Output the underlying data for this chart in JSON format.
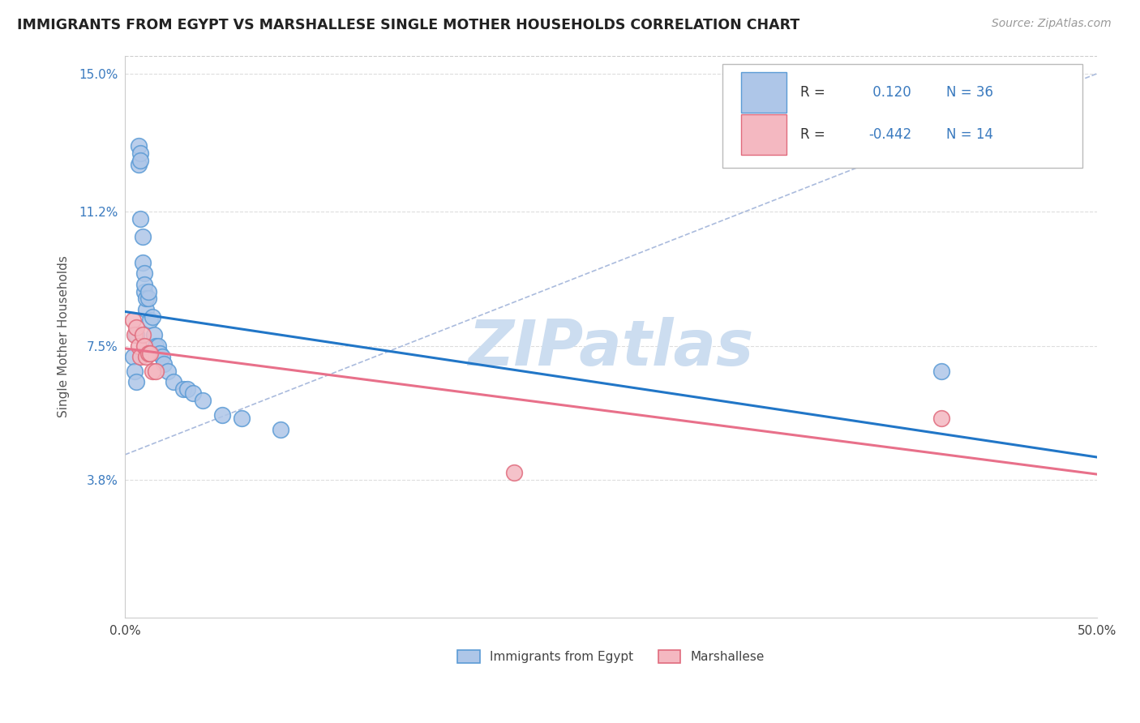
{
  "title": "IMMIGRANTS FROM EGYPT VS MARSHALLESE SINGLE MOTHER HOUSEHOLDS CORRELATION CHART",
  "source": "Source: ZipAtlas.com",
  "ylabel": "Single Mother Households",
  "xlim": [
    0.0,
    0.5
  ],
  "ylim": [
    0.0,
    0.155
  ],
  "xticks": [
    0.0,
    0.1,
    0.2,
    0.3,
    0.4,
    0.5
  ],
  "xticklabels": [
    "0.0%",
    "",
    "",
    "",
    "",
    "50.0%"
  ],
  "ytick_positions": [
    0.038,
    0.075,
    0.112,
    0.15
  ],
  "ytick_labels": [
    "3.8%",
    "7.5%",
    "11.2%",
    "15.0%"
  ],
  "R_egypt": 0.12,
  "N_egypt": 36,
  "R_marshall": -0.442,
  "N_marshall": 14,
  "egypt_color": "#aec6e8",
  "egypt_edge_color": "#5b9bd5",
  "marshall_color": "#f4b8c1",
  "marshall_edge_color": "#e06b7d",
  "egypt_line_color": "#2176c7",
  "marshall_line_color": "#e8708a",
  "watermark_color": "#ccddf0",
  "background_color": "#ffffff",
  "grid_color": "#dddddd",
  "egypt_x": [
    0.004,
    0.005,
    0.006,
    0.006,
    0.007,
    0.007,
    0.008,
    0.008,
    0.008,
    0.009,
    0.009,
    0.01,
    0.01,
    0.01,
    0.011,
    0.011,
    0.012,
    0.012,
    0.013,
    0.014,
    0.015,
    0.016,
    0.017,
    0.018,
    0.019,
    0.02,
    0.022,
    0.025,
    0.03,
    0.032,
    0.035,
    0.04,
    0.05,
    0.06,
    0.08,
    0.42
  ],
  "egypt_y": [
    0.072,
    0.068,
    0.065,
    0.078,
    0.13,
    0.125,
    0.128,
    0.126,
    0.11,
    0.098,
    0.105,
    0.09,
    0.095,
    0.092,
    0.085,
    0.088,
    0.088,
    0.09,
    0.082,
    0.083,
    0.078,
    0.075,
    0.075,
    0.073,
    0.072,
    0.07,
    0.068,
    0.065,
    0.063,
    0.063,
    0.062,
    0.06,
    0.056,
    0.055,
    0.052,
    0.068
  ],
  "marshall_x": [
    0.004,
    0.005,
    0.006,
    0.007,
    0.008,
    0.009,
    0.01,
    0.011,
    0.012,
    0.013,
    0.014,
    0.016,
    0.2,
    0.42
  ],
  "marshall_y": [
    0.082,
    0.078,
    0.08,
    0.075,
    0.072,
    0.078,
    0.075,
    0.072,
    0.073,
    0.073,
    0.068,
    0.068,
    0.04,
    0.055
  ],
  "diag_line_x": [
    0.0,
    0.5
  ],
  "diag_line_y": [
    0.045,
    0.15
  ]
}
